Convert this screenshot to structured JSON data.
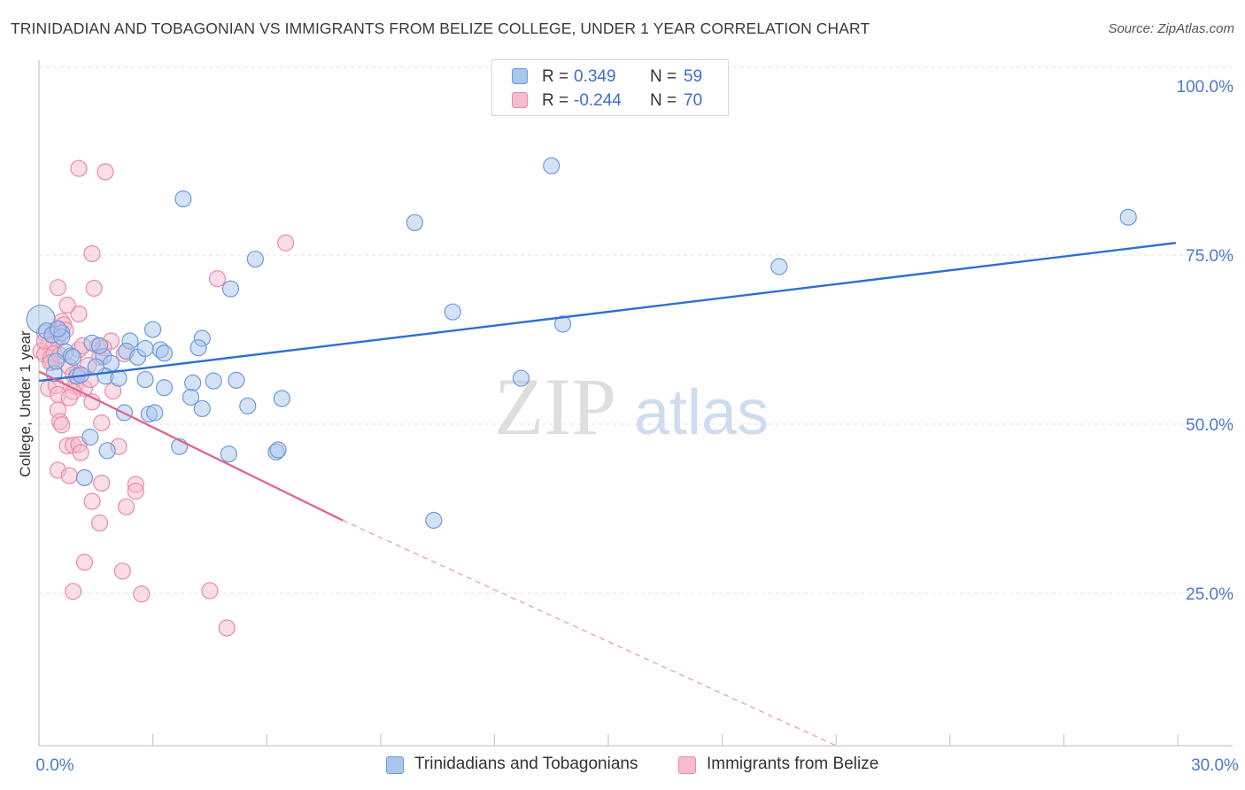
{
  "title": "TRINIDADIAN AND TOBAGONIAN VS IMMIGRANTS FROM BELIZE COLLEGE, UNDER 1 YEAR CORRELATION CHART",
  "source": "Source: ZipAtlas.com",
  "watermark": {
    "zip": "ZIP",
    "atlas": "atlas"
  },
  "colors": {
    "blue_fill": "#a9c6ee",
    "blue_stroke": "#6f9ad8",
    "blue_line": "#2f6fd1",
    "pink_fill": "#f6bccd",
    "pink_stroke": "#e98aa8",
    "pink_line": "#e0678f",
    "tick_label": "#4a7ac8",
    "grid": "#e3e3e3"
  },
  "legend_top": [
    {
      "r_label": "R =",
      "r_value": "0.349",
      "n_label": "N =",
      "n_value": "59"
    },
    {
      "r_label": "R =",
      "r_value": "-0.244",
      "n_label": "N =",
      "n_value": "70"
    }
  ],
  "legend_bottom": [
    {
      "label": "Trinidadians and Tobagonians"
    },
    {
      "label": "Immigrants from Belize"
    }
  ],
  "chart_data": {
    "type": "scatter",
    "title": "TRINIDADIAN AND TOBAGONIAN VS IMMIGRANTS FROM BELIZE COLLEGE, UNDER 1 YEAR CORRELATION CHART",
    "xlabel": "",
    "ylabel": "College, Under 1 year",
    "xlim": [
      0,
      30
    ],
    "ylim": [
      2.5,
      105
    ],
    "x_tick_labels": [
      "0.0%",
      "30.0%"
    ],
    "y_ticks": [
      25,
      50,
      75,
      100
    ],
    "y_tick_labels": [
      "25.0%",
      "50.0%",
      "75.0%",
      "100.0%"
    ],
    "grid": true,
    "legend_position": "top-center",
    "series": [
      {
        "name": "Trinidadians and Tobagonians",
        "R": 0.349,
        "N": 59,
        "trend": {
          "x0": 0,
          "y0": 56.4,
          "x1": 29.95,
          "y1": 76.8
        },
        "points": [
          [
            0.05,
            65.5
          ],
          [
            0.2,
            63.8
          ],
          [
            0.35,
            63.2
          ],
          [
            0.6,
            63.5
          ],
          [
            0.6,
            62.9
          ],
          [
            1.4,
            62
          ],
          [
            3,
            64
          ],
          [
            2.4,
            62.3
          ],
          [
            4.3,
            62.7
          ],
          [
            4.2,
            61.3
          ],
          [
            0.7,
            60.7
          ],
          [
            0.85,
            60.1
          ],
          [
            0.9,
            59.9
          ],
          [
            1.7,
            60
          ],
          [
            2.3,
            60.8
          ],
          [
            2.6,
            59.9
          ],
          [
            3.2,
            61
          ],
          [
            3.3,
            60.5
          ],
          [
            1.9,
            59
          ],
          [
            1.0,
            57.1
          ],
          [
            1.1,
            57.3
          ],
          [
            1.75,
            57.1
          ],
          [
            2.1,
            56.8
          ],
          [
            2.8,
            56.6
          ],
          [
            3.3,
            55.4
          ],
          [
            4.05,
            56.1
          ],
          [
            4.6,
            56.4
          ],
          [
            5.2,
            56.5
          ],
          [
            4.0,
            54
          ],
          [
            5.5,
            52.7
          ],
          [
            4.3,
            52.3
          ],
          [
            2.25,
            51.7
          ],
          [
            2.9,
            51.5
          ],
          [
            3.05,
            51.7
          ],
          [
            6.4,
            53.8
          ],
          [
            1.35,
            48.1
          ],
          [
            1.8,
            46.1
          ],
          [
            3.7,
            46.7
          ],
          [
            5.0,
            45.6
          ],
          [
            6.25,
            45.9
          ],
          [
            6.3,
            46.2
          ],
          [
            1.2,
            42.1
          ],
          [
            3.8,
            83.3
          ],
          [
            5.7,
            74.4
          ],
          [
            5.05,
            70
          ],
          [
            9.9,
            79.8
          ],
          [
            10.9,
            66.6
          ],
          [
            13.5,
            88.2
          ],
          [
            13.8,
            64.8
          ],
          [
            12.7,
            56.8
          ],
          [
            10.4,
            35.8
          ],
          [
            19.5,
            73.3
          ],
          [
            28.7,
            80.6
          ],
          [
            1.5,
            58.5
          ],
          [
            0.4,
            57.5
          ],
          [
            2.8,
            61.2
          ],
          [
            0.5,
            64.1
          ],
          [
            1.6,
            61.6
          ],
          [
            0.45,
            59.3
          ]
        ]
      },
      {
        "name": "Immigrants from Belize",
        "R": -0.244,
        "N": 70,
        "trend": {
          "x0": 0,
          "y0": 57.8,
          "x1": 8.0,
          "y1": 35.8,
          "dash_x1": 21.0,
          "dash_y1": 2.5
        },
        "points": [
          [
            0.15,
            63.5
          ],
          [
            0.35,
            63.3
          ],
          [
            0.45,
            64
          ],
          [
            0.5,
            62.8
          ],
          [
            0.6,
            65.2
          ],
          [
            0.65,
            64.7
          ],
          [
            0.25,
            61.8
          ],
          [
            0.4,
            61.9
          ],
          [
            0.05,
            60.8
          ],
          [
            0.15,
            60.3
          ],
          [
            0.3,
            59.8
          ],
          [
            0.35,
            59.2
          ],
          [
            0.4,
            60.4
          ],
          [
            1.05,
            61
          ],
          [
            1.55,
            61.6
          ],
          [
            1.6,
            59.9
          ],
          [
            1.0,
            57.6
          ],
          [
            1.3,
            58.7
          ],
          [
            0.8,
            58.5
          ],
          [
            0.95,
            55.6
          ],
          [
            1.2,
            55.3
          ],
          [
            0.25,
            55.3
          ],
          [
            0.45,
            55.7
          ],
          [
            0.9,
            54.8
          ],
          [
            0.5,
            54.4
          ],
          [
            0.8,
            53.9
          ],
          [
            1.4,
            53.3
          ],
          [
            1.95,
            54.9
          ],
          [
            0.5,
            52.1
          ],
          [
            0.55,
            50.4
          ],
          [
            0.6,
            49.9
          ],
          [
            1.65,
            50.2
          ],
          [
            0.75,
            46.8
          ],
          [
            0.9,
            46.9
          ],
          [
            1.05,
            47
          ],
          [
            1.1,
            45.8
          ],
          [
            2.1,
            46.7
          ],
          [
            0.5,
            43.2
          ],
          [
            0.8,
            42.4
          ],
          [
            1.65,
            41.3
          ],
          [
            2.55,
            41.1
          ],
          [
            1.4,
            38.6
          ],
          [
            2.3,
            37.8
          ],
          [
            1.6,
            35.4
          ],
          [
            2.55,
            40.1
          ],
          [
            1.2,
            29.6
          ],
          [
            2.2,
            28.3
          ],
          [
            0.9,
            25.3
          ],
          [
            2.7,
            24.9
          ],
          [
            4.5,
            25.4
          ],
          [
            4.95,
            19.9
          ],
          [
            1.05,
            87.8
          ],
          [
            1.75,
            87.3
          ],
          [
            1.4,
            75.2
          ],
          [
            1.45,
            70.1
          ],
          [
            0.5,
            70.2
          ],
          [
            1.05,
            66.3
          ],
          [
            0.75,
            67.6
          ],
          [
            4.7,
            71.5
          ],
          [
            6.5,
            76.8
          ],
          [
            1.9,
            62.3
          ],
          [
            1.7,
            61.3
          ],
          [
            0.7,
            63.9
          ],
          [
            1.15,
            61.6
          ],
          [
            0.3,
            59.1
          ],
          [
            0.9,
            57.3
          ],
          [
            1.35,
            56.6
          ],
          [
            2.25,
            60.4
          ],
          [
            0.15,
            62.3
          ],
          [
            0.55,
            60.2
          ]
        ]
      }
    ]
  }
}
